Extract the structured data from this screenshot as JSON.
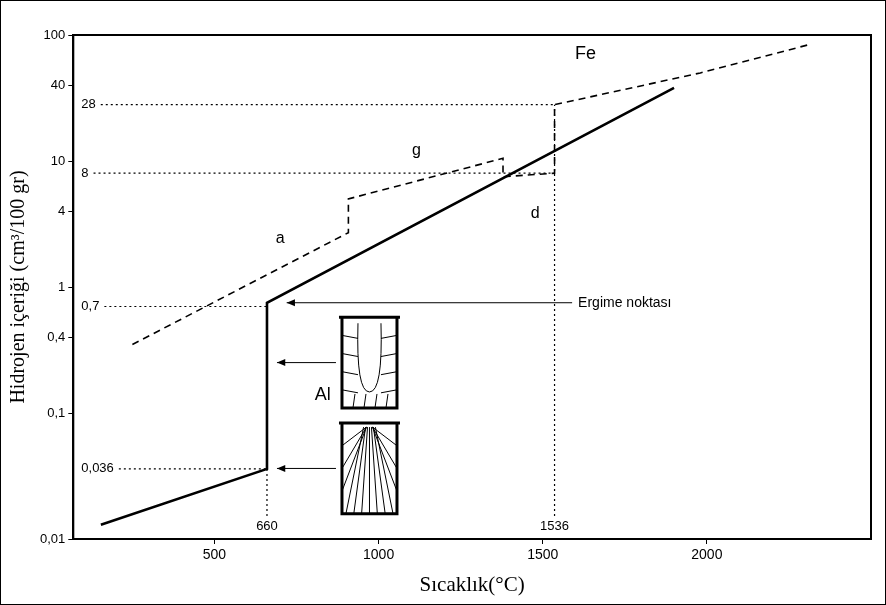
{
  "chart_data": {
    "type": "line",
    "x_label": "Sıcaklık(°C)",
    "y_label": "Hidrojen içeriği (cm³/100 gr)",
    "log": "y",
    "grid": false,
    "xlim": [
      70,
      2500
    ],
    "xticks": [
      500,
      1000,
      1500,
      2000
    ],
    "ylim": [
      0.01,
      100
    ],
    "yticks": [
      {
        "value": 0.01,
        "label": "0,01"
      },
      {
        "value": 0.1,
        "label": "0,1"
      },
      {
        "value": 0.4,
        "label": "0,4"
      },
      1,
      4,
      10,
      40,
      100
    ],
    "series": [
      {
        "name": "Al",
        "color": "#000000",
        "line_style": "solid",
        "x": [
          154,
          660,
          660,
          1900
        ],
        "values": [
          0.013,
          0.036,
          0.75,
          38
        ],
        "label_x": 830,
        "label_y": 0.14
      },
      {
        "name": "Fe",
        "color": "#000000",
        "line_style": "dashed",
        "x": [
          250,
          908,
          908,
          1379,
          1379,
          1536,
          1536,
          1980,
          2320
        ],
        "values": [
          0.35,
          2.7,
          5,
          10.5,
          7.5,
          8,
          28,
          50,
          85
        ],
        "label_x": 1630,
        "label_y": 70
      }
    ],
    "reference_lines": [
      {
        "y": 28,
        "label": "28",
        "x": 1536
      },
      {
        "y": 8,
        "label": "8",
        "x": 1536
      },
      {
        "y": 0.7,
        "label": "0,7",
        "x": 660
      },
      {
        "y": 0.036,
        "label": "0,036",
        "x": 660
      }
    ],
    "vertical_lines": [
      {
        "x": 660,
        "label": "660",
        "y": 0.036
      },
      {
        "x": 1536,
        "label": "1536",
        "y": 28
      }
    ],
    "annotations": [
      {
        "text": "a",
        "x": 700,
        "y": 2.4
      },
      {
        "text": "g",
        "x": 1115,
        "y": 12
      },
      {
        "text": "d",
        "x": 1477,
        "y": 3.8
      },
      {
        "text": "Ergime noktası",
        "x": 1750,
        "y": 0.75,
        "arrow_x": 720,
        "arrow_y": 0.75
      }
    ]
  }
}
